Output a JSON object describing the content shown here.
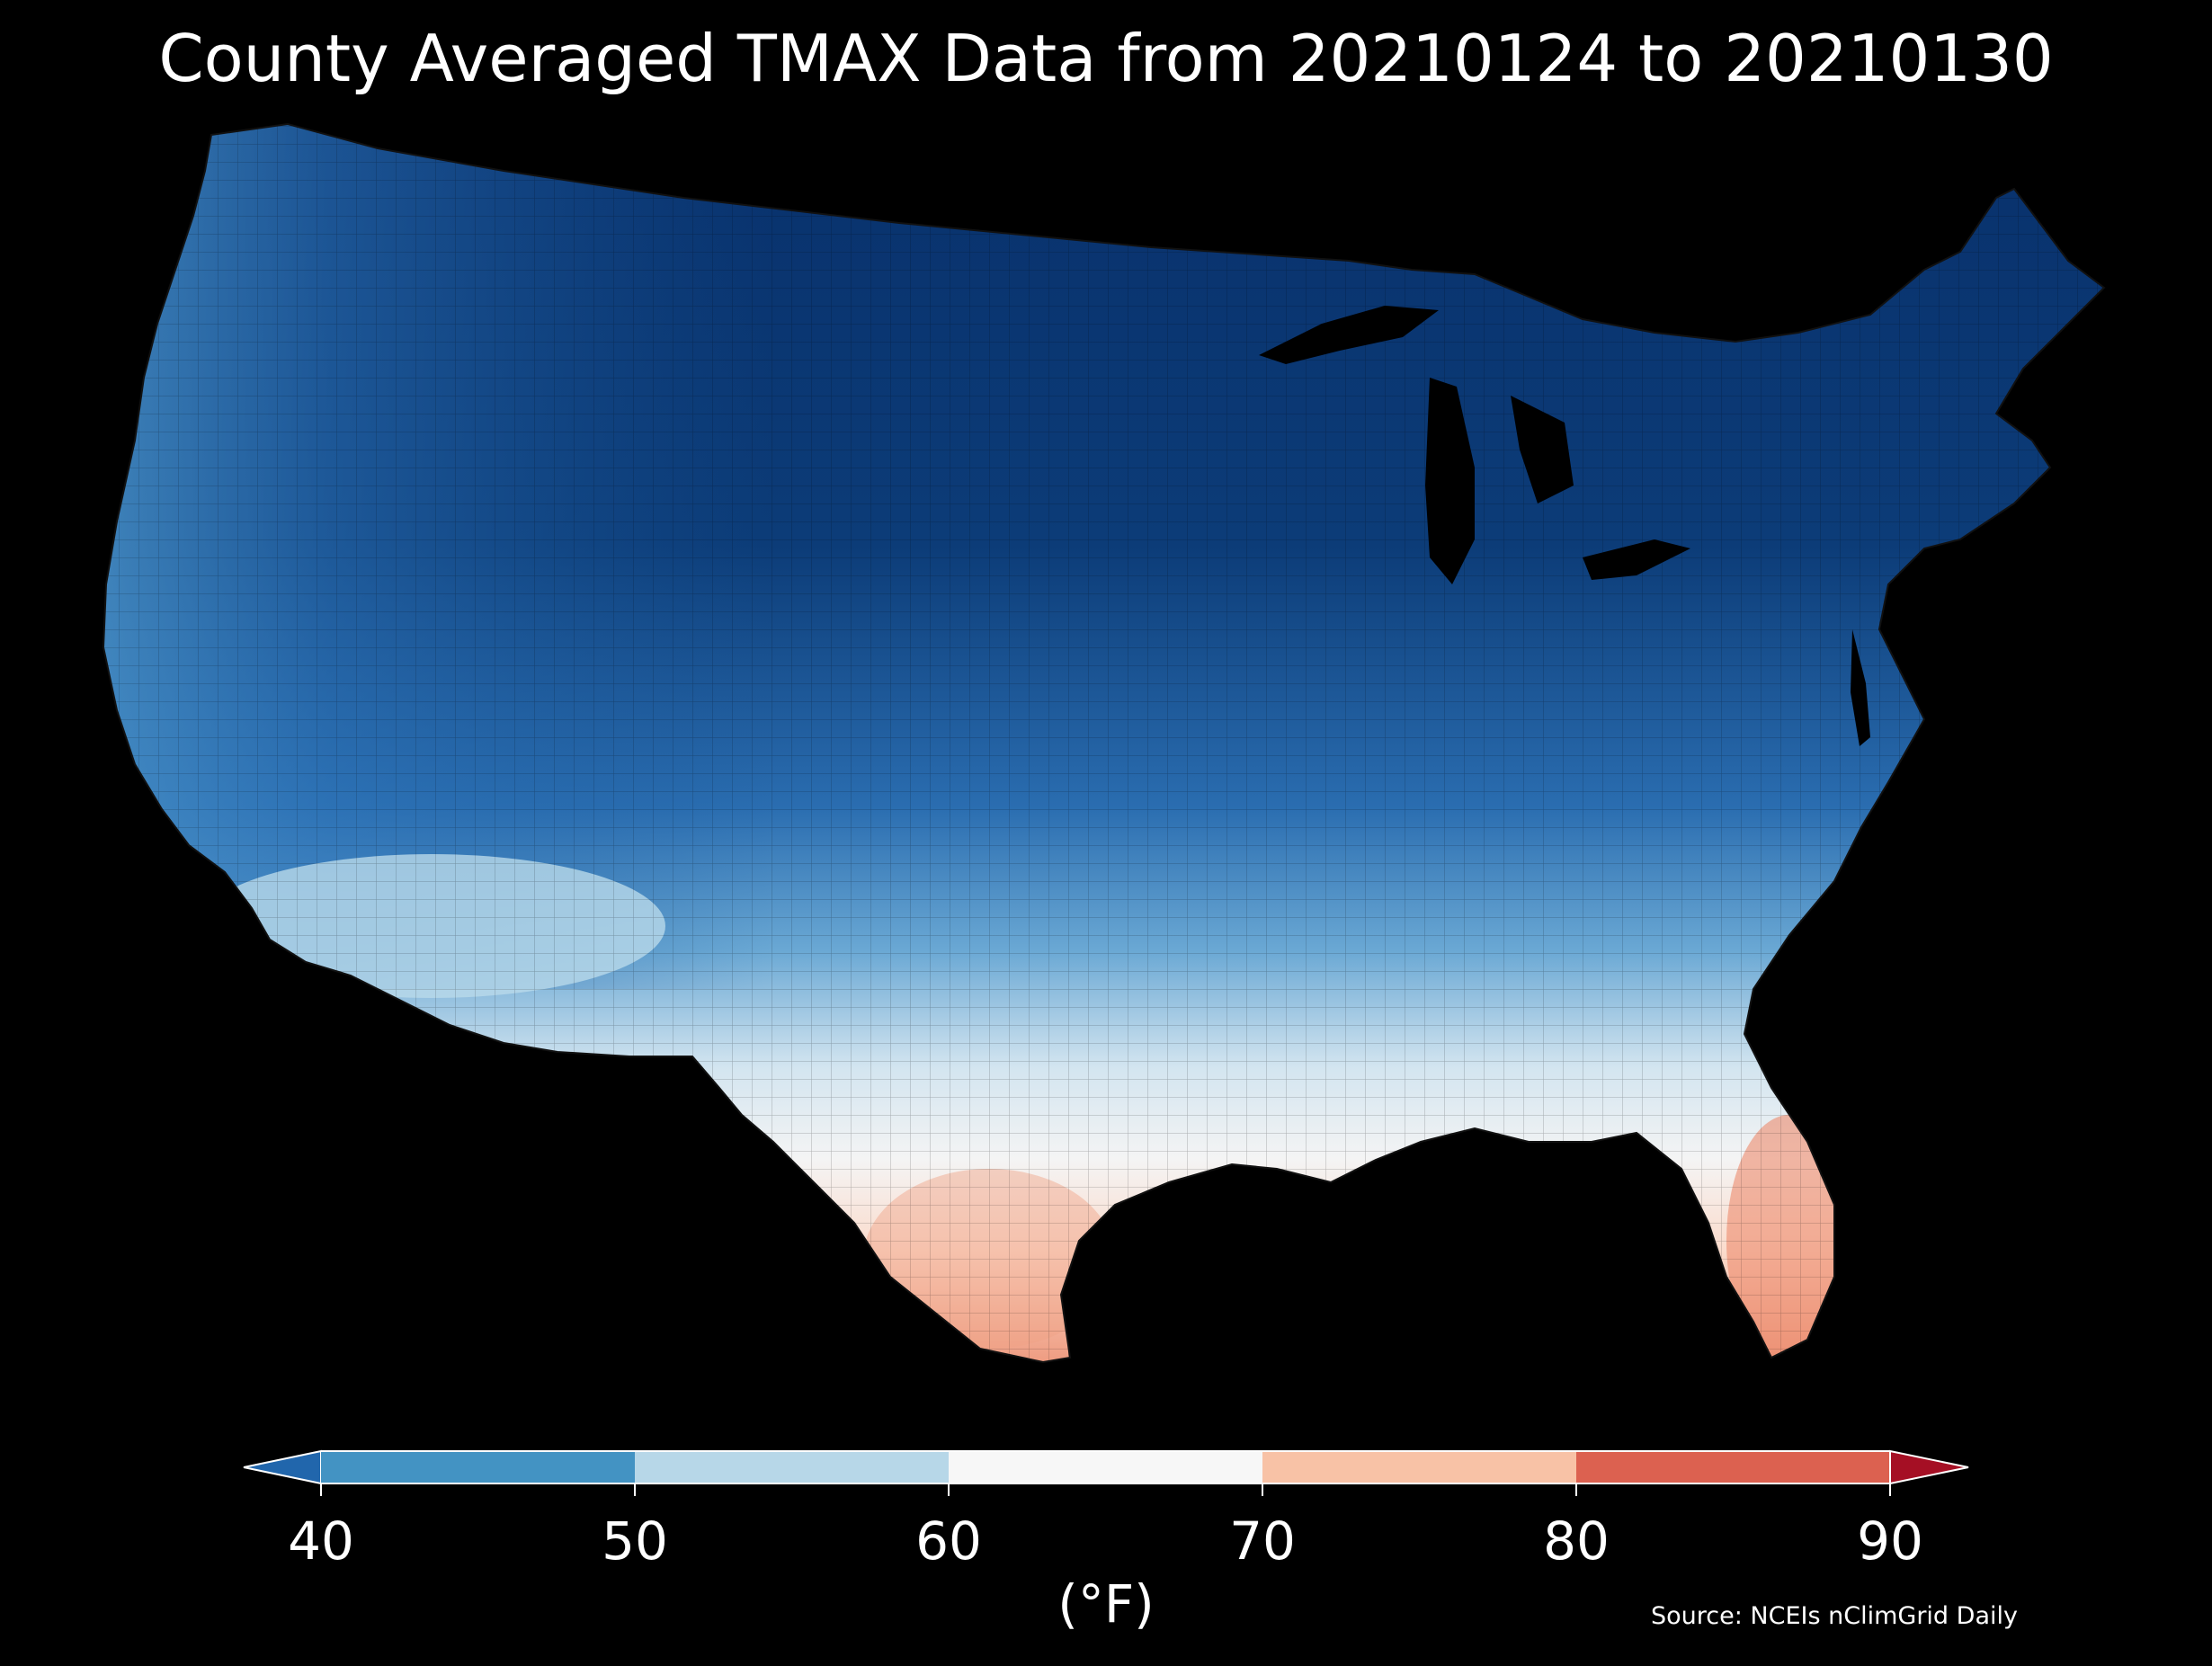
{
  "title": "County Averaged TMAX Data from 20210124 to 20210130",
  "source": "Source: NCEIs nClimGrid Daily",
  "colorbar": {
    "unit_label": "(°F)",
    "ticks": [
      "40",
      "50",
      "60",
      "70",
      "80",
      "90"
    ],
    "tick_values": [
      40,
      50,
      60,
      70,
      80,
      90
    ],
    "extend": "both",
    "bins": [
      {
        "range": "<40",
        "color": "#2166ac"
      },
      {
        "range": "40-50",
        "color": "#4393c3"
      },
      {
        "range": "50-60",
        "color": "#b7d7e8"
      },
      {
        "range": "60-70",
        "color": "#f7f7f7"
      },
      {
        "range": "70-80",
        "color": "#f8c2a6"
      },
      {
        "range": "80-90",
        "color": "#dc6150"
      },
      {
        "range": ">90",
        "color": "#a50f24"
      }
    ]
  },
  "map": {
    "region": "Contiguous United States",
    "unit": "county",
    "gradient_colors": {
      "coldest": "#08306b",
      "cold": "#1c5da2",
      "cool": "#3f8fc6",
      "mild": "#9ecae1",
      "neutral": "#f7f7f7",
      "warm": "#fbd1bd",
      "warmest": "#ec8a6c"
    }
  }
}
